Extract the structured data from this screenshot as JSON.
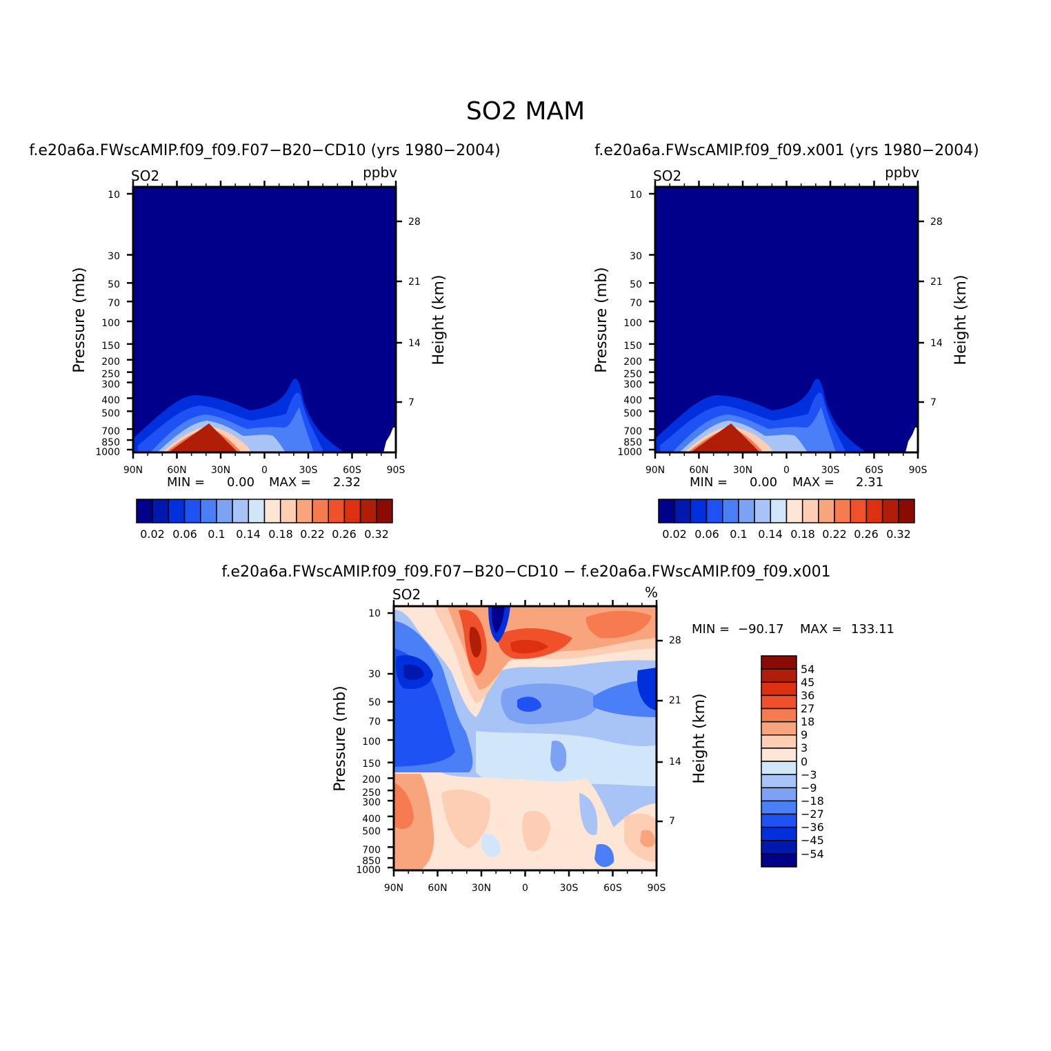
{
  "figure": {
    "title": "SO2  MAM"
  },
  "chart_data": [
    {
      "type": "heatmap",
      "title": "f.e20a6a.FWscAMIP.f09_f09.F07−B20−CD10 (yrs 1980−2004)",
      "variable": "SO2",
      "units": "ppbv",
      "xlabel": "",
      "ylabel": "Pressure (mb)",
      "ylabel_right": "Height (km)",
      "x_ticks": [
        "90N",
        "60N",
        "30N",
        "0",
        "30S",
        "60S",
        "90S"
      ],
      "y_ticks": [
        10,
        30,
        50,
        70,
        100,
        150,
        200,
        250,
        300,
        400,
        500,
        700,
        850,
        1000
      ],
      "y_right_ticks": [
        28,
        21,
        14,
        7
      ],
      "ylim": [
        1000,
        10
      ],
      "min_label": "MIN =",
      "min_value": "0.00",
      "max_label": "MAX =",
      "max_value": "2.32",
      "colorbar_levels": [
        0.02,
        0.04,
        0.06,
        0.08,
        0.1,
        0.12,
        0.14,
        0.16,
        0.18,
        0.2,
        0.22,
        0.24,
        0.26,
        0.28,
        0.3,
        0.32
      ],
      "colorbar_labels": [
        "0.02",
        "0.06",
        "0.1",
        "0.14",
        "0.18",
        "0.22",
        "0.26",
        "0.32"
      ],
      "colors": [
        "#00008b",
        "#0018ad",
        "#0030dd",
        "#1e52f5",
        "#4a7ff7",
        "#7ea2f3",
        "#a8c3f6",
        "#d2e6fa",
        "#fde6d6",
        "#fdcdb4",
        "#f8a57e",
        "#f67b50",
        "#f0502a",
        "#dc3010",
        "#b01e08",
        "#8a0b04"
      ]
    },
    {
      "type": "heatmap",
      "title": "f.e20a6a.FWscAMIP.f09_f09.x001 (yrs 1980−2004)",
      "variable": "SO2",
      "units": "ppbv",
      "xlabel": "",
      "ylabel": "Pressure (mb)",
      "ylabel_right": "Height (km)",
      "x_ticks": [
        "90N",
        "60N",
        "30N",
        "0",
        "30S",
        "60S",
        "90S"
      ],
      "y_ticks": [
        10,
        30,
        50,
        70,
        100,
        150,
        200,
        250,
        300,
        400,
        500,
        700,
        850,
        1000
      ],
      "y_right_ticks": [
        28,
        21,
        14,
        7
      ],
      "ylim": [
        1000,
        10
      ],
      "min_label": "MIN =",
      "min_value": "0.00",
      "max_label": "MAX =",
      "max_value": "2.31",
      "colorbar_levels": [
        0.02,
        0.04,
        0.06,
        0.08,
        0.1,
        0.12,
        0.14,
        0.16,
        0.18,
        0.2,
        0.22,
        0.24,
        0.26,
        0.28,
        0.3,
        0.32
      ],
      "colorbar_labels": [
        "0.02",
        "0.06",
        "0.1",
        "0.14",
        "0.18",
        "0.22",
        "0.26",
        "0.32"
      ],
      "colors": [
        "#00008b",
        "#0018ad",
        "#0030dd",
        "#1e52f5",
        "#4a7ff7",
        "#7ea2f3",
        "#a8c3f6",
        "#d2e6fa",
        "#fde6d6",
        "#fdcdb4",
        "#f8a57e",
        "#f67b50",
        "#f0502a",
        "#dc3010",
        "#b01e08",
        "#8a0b04"
      ]
    },
    {
      "type": "heatmap",
      "title": "f.e20a6a.FWscAMIP.f09_f09.F07−B20−CD10 − f.e20a6a.FWscAMIP.f09_f09.x001",
      "variable": "SO2",
      "units": "%",
      "xlabel": "",
      "ylabel": "Pressure (mb)",
      "ylabel_right": "Height (km)",
      "x_ticks": [
        "90N",
        "60N",
        "30N",
        "0",
        "30S",
        "60S",
        "90S"
      ],
      "y_ticks": [
        10,
        30,
        50,
        70,
        100,
        150,
        200,
        250,
        300,
        400,
        500,
        700,
        850,
        1000
      ],
      "y_right_ticks": [
        28,
        21,
        14,
        7
      ],
      "ylim": [
        1000,
        10
      ],
      "min_label": "MIN =",
      "min_value": "−90.17",
      "max_label": "MAX =",
      "max_value": "133.11",
      "colorbar_levels": [
        54,
        45,
        36,
        27,
        18,
        9,
        3,
        0,
        -3,
        -9,
        -18,
        -27,
        -36,
        -45,
        -54
      ],
      "colorbar_labels": [
        "54",
        "45",
        "36",
        "27",
        "18",
        "9",
        "3",
        "0",
        "−3",
        "−9",
        "−18",
        "−27",
        "−36",
        "−45",
        "−54"
      ],
      "colors": [
        "#8a0b04",
        "#b01e08",
        "#dc3010",
        "#f0502a",
        "#f67b50",
        "#f8a57e",
        "#fdcdb4",
        "#fde6d6",
        "#d2e6fa",
        "#a8c3f6",
        "#7ea2f3",
        "#4a7ff7",
        "#1e52f5",
        "#0030dd",
        "#0018ad",
        "#00008b"
      ]
    }
  ]
}
